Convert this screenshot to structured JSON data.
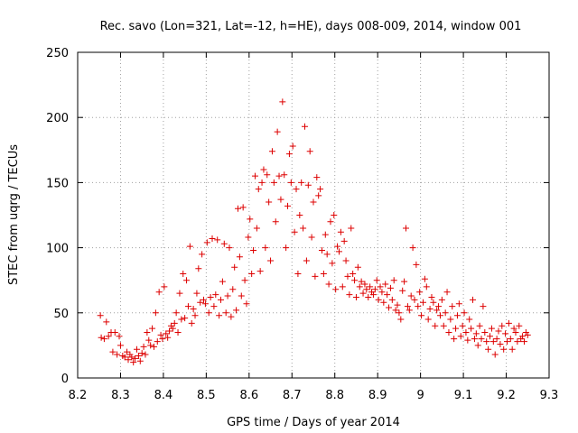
{
  "chart_data": {
    "type": "scatter",
    "title": "Rec. savo (Lon=321, Lat=-12, h=HE), days 008-009, 2014, window 001",
    "xlabel": "GPS time / Days of year 2014",
    "ylabel": "STEC from uqrg / TECUs",
    "xlim": [
      8.2,
      9.3
    ],
    "ylim": [
      0,
      250
    ],
    "xticks": [
      8.2,
      8.3,
      8.4,
      8.5,
      8.6,
      8.7,
      8.8,
      8.9,
      9.0,
      9.1,
      9.2,
      9.3
    ],
    "xtick_labels": [
      "8.2",
      "8.3",
      "8.4",
      "8.5",
      "8.6",
      "8.7",
      "8.8",
      "8.9",
      "9",
      "9.1",
      "9.2",
      "9.3"
    ],
    "yticks": [
      0,
      50,
      100,
      150,
      200,
      250
    ],
    "ytick_labels": [
      "0",
      "50",
      "100",
      "150",
      "200",
      "250"
    ],
    "grid": true,
    "marker": "+",
    "color": "#dd0000",
    "series": [
      {
        "name": "STEC",
        "points": [
          [
            8.253,
            48
          ],
          [
            8.255,
            31
          ],
          [
            8.262,
            30
          ],
          [
            8.267,
            43
          ],
          [
            8.272,
            32
          ],
          [
            8.278,
            35
          ],
          [
            8.282,
            20
          ],
          [
            8.287,
            35
          ],
          [
            8.292,
            18
          ],
          [
            8.297,
            32
          ],
          [
            8.3,
            25
          ],
          [
            8.305,
            17
          ],
          [
            8.31,
            16
          ],
          [
            8.315,
            20
          ],
          [
            8.318,
            14
          ],
          [
            8.322,
            18
          ],
          [
            8.326,
            16
          ],
          [
            8.33,
            12
          ],
          [
            8.334,
            15
          ],
          [
            8.338,
            22
          ],
          [
            8.342,
            17
          ],
          [
            8.346,
            13
          ],
          [
            8.35,
            19
          ],
          [
            8.354,
            24
          ],
          [
            8.358,
            18
          ],
          [
            8.362,
            35
          ],
          [
            8.366,
            29
          ],
          [
            8.37,
            25
          ],
          [
            8.374,
            38
          ],
          [
            8.378,
            24
          ],
          [
            8.382,
            50
          ],
          [
            8.386,
            28
          ],
          [
            8.39,
            66
          ],
          [
            8.394,
            33
          ],
          [
            8.398,
            30
          ],
          [
            8.402,
            70
          ],
          [
            8.406,
            34
          ],
          [
            8.41,
            31
          ],
          [
            8.414,
            36
          ],
          [
            8.418,
            40
          ],
          [
            8.422,
            38
          ],
          [
            8.426,
            42
          ],
          [
            8.43,
            50
          ],
          [
            8.434,
            35
          ],
          [
            8.438,
            65
          ],
          [
            8.442,
            45
          ],
          [
            8.446,
            80
          ],
          [
            8.45,
            46
          ],
          [
            8.454,
            75
          ],
          [
            8.458,
            55
          ],
          [
            8.462,
            101
          ],
          [
            8.466,
            42
          ],
          [
            8.47,
            53
          ],
          [
            8.474,
            48
          ],
          [
            8.478,
            65
          ],
          [
            8.482,
            84
          ],
          [
            8.486,
            58
          ],
          [
            8.49,
            95
          ],
          [
            8.494,
            60
          ],
          [
            8.498,
            57
          ],
          [
            8.502,
            104
          ],
          [
            8.506,
            50
          ],
          [
            8.51,
            62
          ],
          [
            8.514,
            107
          ],
          [
            8.518,
            55
          ],
          [
            8.522,
            64
          ],
          [
            8.526,
            106
          ],
          [
            8.53,
            48
          ],
          [
            8.534,
            60
          ],
          [
            8.538,
            74
          ],
          [
            8.542,
            103
          ],
          [
            8.546,
            50
          ],
          [
            8.55,
            63
          ],
          [
            8.554,
            100
          ],
          [
            8.558,
            47
          ],
          [
            8.562,
            68
          ],
          [
            8.566,
            85
          ],
          [
            8.57,
            52
          ],
          [
            8.574,
            130
          ],
          [
            8.578,
            93
          ],
          [
            8.582,
            63
          ],
          [
            8.586,
            131
          ],
          [
            8.59,
            75
          ],
          [
            8.594,
            57
          ],
          [
            8.598,
            108
          ],
          [
            8.602,
            122
          ],
          [
            8.606,
            80
          ],
          [
            8.61,
            98
          ],
          [
            8.614,
            155
          ],
          [
            8.618,
            115
          ],
          [
            8.622,
            145
          ],
          [
            8.626,
            82
          ],
          [
            8.63,
            150
          ],
          [
            8.634,
            160
          ],
          [
            8.638,
            100
          ],
          [
            8.642,
            156
          ],
          [
            8.646,
            135
          ],
          [
            8.65,
            90
          ],
          [
            8.654,
            174
          ],
          [
            8.658,
            150
          ],
          [
            8.662,
            120
          ],
          [
            8.666,
            189
          ],
          [
            8.67,
            155
          ],
          [
            8.674,
            137
          ],
          [
            8.678,
            212
          ],
          [
            8.682,
            156
          ],
          [
            8.686,
            100
          ],
          [
            8.69,
            132
          ],
          [
            8.694,
            172
          ],
          [
            8.698,
            150
          ],
          [
            8.702,
            178
          ],
          [
            8.706,
            112
          ],
          [
            8.71,
            145
          ],
          [
            8.714,
            80
          ],
          [
            8.718,
            125
          ],
          [
            8.722,
            150
          ],
          [
            8.726,
            115
          ],
          [
            8.73,
            193
          ],
          [
            8.734,
            90
          ],
          [
            8.738,
            148
          ],
          [
            8.742,
            174
          ],
          [
            8.746,
            108
          ],
          [
            8.75,
            135
          ],
          [
            8.754,
            78
          ],
          [
            8.758,
            154
          ],
          [
            8.762,
            140
          ],
          [
            8.766,
            145
          ],
          [
            8.77,
            98
          ],
          [
            8.774,
            80
          ],
          [
            8.778,
            110
          ],
          [
            8.782,
            95
          ],
          [
            8.786,
            72
          ],
          [
            8.79,
            120
          ],
          [
            8.794,
            88
          ],
          [
            8.798,
            125
          ],
          [
            8.802,
            68
          ],
          [
            8.806,
            101
          ],
          [
            8.81,
            97
          ],
          [
            8.814,
            112
          ],
          [
            8.818,
            70
          ],
          [
            8.822,
            105
          ],
          [
            8.826,
            90
          ],
          [
            8.83,
            78
          ],
          [
            8.834,
            64
          ],
          [
            8.838,
            115
          ],
          [
            8.842,
            80
          ],
          [
            8.846,
            75
          ],
          [
            8.85,
            62
          ],
          [
            8.854,
            85
          ],
          [
            8.858,
            70
          ],
          [
            8.862,
            74
          ],
          [
            8.866,
            65
          ],
          [
            8.87,
            72
          ],
          [
            8.874,
            68
          ],
          [
            8.878,
            62
          ],
          [
            8.882,
            70
          ],
          [
            8.886,
            66
          ],
          [
            8.89,
            64
          ],
          [
            8.894,
            68
          ],
          [
            8.898,
            75
          ],
          [
            8.902,
            60
          ],
          [
            8.906,
            70
          ],
          [
            8.91,
            66
          ],
          [
            8.914,
            58
          ],
          [
            8.918,
            72
          ],
          [
            8.922,
            64
          ],
          [
            8.926,
            54
          ],
          [
            8.93,
            69
          ],
          [
            8.934,
            60
          ],
          [
            8.938,
            75
          ],
          [
            8.942,
            52
          ],
          [
            8.946,
            56
          ],
          [
            8.95,
            50
          ],
          [
            8.954,
            45
          ],
          [
            8.958,
            67
          ],
          [
            8.962,
            74
          ],
          [
            8.966,
            115
          ],
          [
            8.97,
            55
          ],
          [
            8.974,
            52
          ],
          [
            8.978,
            63
          ],
          [
            8.982,
            100
          ],
          [
            8.986,
            60
          ],
          [
            8.99,
            87
          ],
          [
            8.994,
            55
          ],
          [
            8.998,
            66
          ],
          [
            9.002,
            48
          ],
          [
            9.006,
            58
          ],
          [
            9.01,
            76
          ],
          [
            9.014,
            70
          ],
          [
            9.018,
            45
          ],
          [
            9.022,
            53
          ],
          [
            9.026,
            62
          ],
          [
            9.03,
            58
          ],
          [
            9.034,
            40
          ],
          [
            9.038,
            52
          ],
          [
            9.042,
            55
          ],
          [
            9.046,
            48
          ],
          [
            9.05,
            60
          ],
          [
            9.054,
            40
          ],
          [
            9.058,
            50
          ],
          [
            9.062,
            66
          ],
          [
            9.066,
            35
          ],
          [
            9.07,
            45
          ],
          [
            9.074,
            55
          ],
          [
            9.078,
            30
          ],
          [
            9.082,
            38
          ],
          [
            9.086,
            48
          ],
          [
            9.09,
            57
          ],
          [
            9.094,
            32
          ],
          [
            9.098,
            40
          ],
          [
            9.102,
            50
          ],
          [
            9.106,
            35
          ],
          [
            9.11,
            29
          ],
          [
            9.114,
            45
          ],
          [
            9.118,
            38
          ],
          [
            9.122,
            60
          ],
          [
            9.126,
            30
          ],
          [
            9.13,
            34
          ],
          [
            9.134,
            25
          ],
          [
            9.138,
            40
          ],
          [
            9.142,
            30
          ],
          [
            9.146,
            55
          ],
          [
            9.15,
            35
          ],
          [
            9.154,
            28
          ],
          [
            9.158,
            22
          ],
          [
            9.162,
            32
          ],
          [
            9.166,
            38
          ],
          [
            9.17,
            28
          ],
          [
            9.174,
            18
          ],
          [
            9.178,
            30
          ],
          [
            9.182,
            36
          ],
          [
            9.186,
            26
          ],
          [
            9.19,
            40
          ],
          [
            9.194,
            22
          ],
          [
            9.198,
            34
          ],
          [
            9.202,
            28
          ],
          [
            9.206,
            42
          ],
          [
            9.21,
            30
          ],
          [
            9.214,
            22
          ],
          [
            9.218,
            38
          ],
          [
            9.222,
            35
          ],
          [
            9.226,
            28
          ],
          [
            9.23,
            40
          ],
          [
            9.234,
            30
          ],
          [
            9.238,
            32
          ],
          [
            9.242,
            28
          ],
          [
            9.246,
            35
          ],
          [
            9.25,
            33
          ]
        ]
      }
    ]
  }
}
